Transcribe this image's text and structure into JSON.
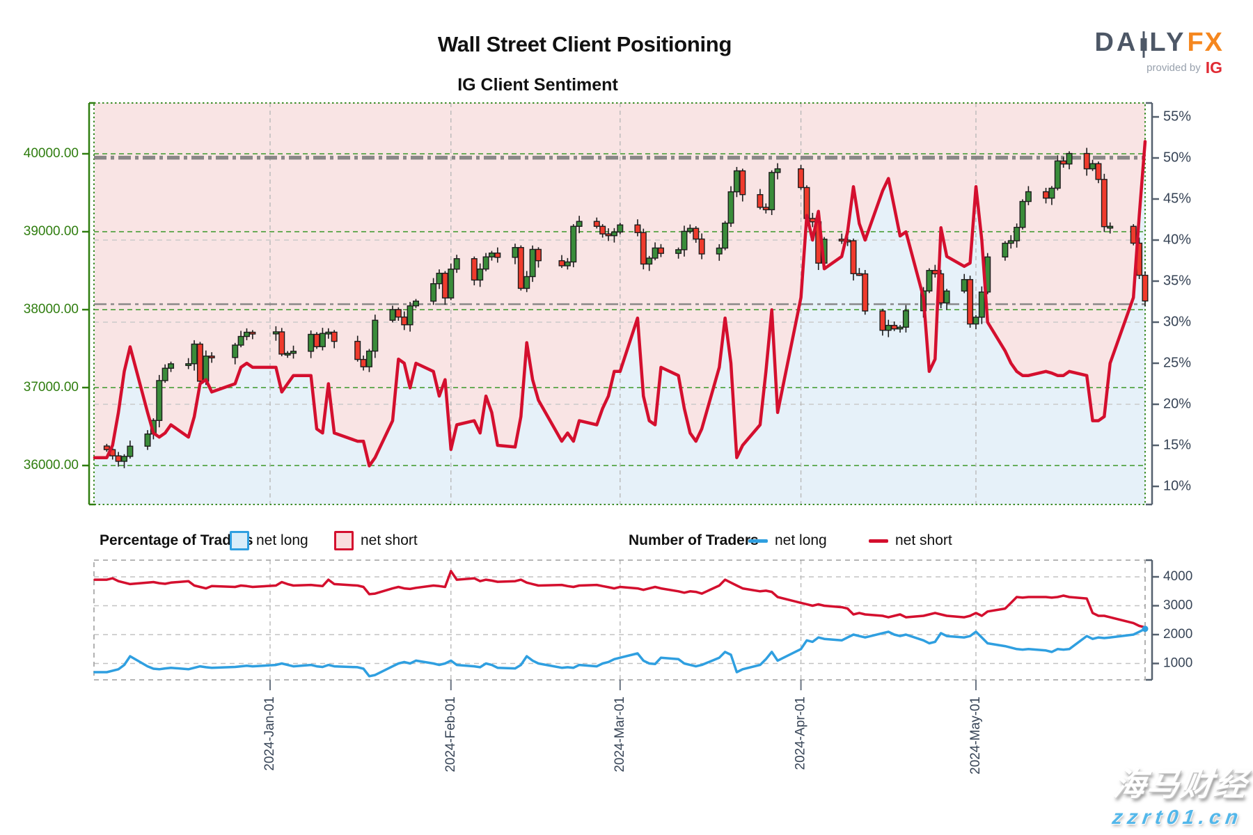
{
  "header": {
    "title": "Wall Street Client Positioning",
    "subtitle": "IG Client Sentiment",
    "logo": {
      "part1": "DA",
      "part2": "LY",
      "part3": "FX",
      "provided_by": "provided by",
      "ig": "IG"
    }
  },
  "legend": {
    "percentage_title": "Percentage of Traders",
    "pct_net_long": "net long",
    "pct_net_short": "net short",
    "number_title": "Number of Traders",
    "num_net_long": "net long",
    "num_net_short": "net short"
  },
  "watermark": {
    "text_cn": "海马财经",
    "text_url": "zzrt01.cn"
  },
  "colors": {
    "sentiment_red": "#d40f2e",
    "traders_blue": "#2f9fe0",
    "pink_fill": "#f9e4e4",
    "blue_fill": "#e6f1f9",
    "candle_green": "#3a8c3a",
    "candle_red": "#ef3b2d",
    "green_axis": "#2f7d0f",
    "green_grid": "#4da03c",
    "green_border": "#3c8c28",
    "slate": "#374456",
    "ref_gray": "#7d7d7d",
    "minor_gray": "#cacaca",
    "month_gray": "#b9b9b9",
    "lower_grid": "#c2c2c2",
    "lower_border": "#9e9e9e"
  },
  "chart_data": {
    "type": "candlestick+line",
    "title": "Wall Street Client Positioning",
    "subtitle": "IG Client Sentiment",
    "price_axis": {
      "side": "left",
      "ticks": [
        40000,
        39000,
        38000,
        37000,
        36000
      ],
      "labels": [
        "40000.00",
        "39000.00",
        "38000.00",
        "37000.00",
        "36000.00"
      ],
      "range": [
        35480,
        40650
      ]
    },
    "pct_axis": {
      "side": "right",
      "ticks": [
        55,
        50,
        45,
        40,
        35,
        30,
        25,
        20,
        15,
        10
      ],
      "labels": [
        "55%",
        "50%",
        "45%",
        "40%",
        "35%",
        "30%",
        "25%",
        "20%",
        "15%",
        "10%"
      ],
      "minor_gridlines": [
        40,
        30,
        20
      ],
      "range": [
        7.5,
        56.7
      ]
    },
    "count_axis": {
      "side": "right",
      "ticks": [
        4000,
        3000,
        2000,
        1000
      ],
      "labels": [
        "4000",
        "3000",
        "2000",
        "1000"
      ],
      "range": [
        430,
        4580
      ]
    },
    "reference_price_lines": [
      {
        "price": 39950,
        "weight": "thick"
      },
      {
        "price": 38070,
        "weight": "thin"
      }
    ],
    "months": [
      {
        "date": "2024-01-01",
        "label": "2024-Jan-01"
      },
      {
        "date": "2024-02-01",
        "label": "2024-Feb-01"
      },
      {
        "date": "2024-03-01",
        "label": "2024-Mar-01"
      },
      {
        "date": "2024-04-01",
        "label": "2024-Apr-01"
      },
      {
        "date": "2024-05-01",
        "label": "2024-May-01"
      }
    ],
    "series": {
      "dates": [
        "2023-12-04",
        "2023-12-05",
        "2023-12-06",
        "2023-12-07",
        "2023-12-08",
        "2023-12-11",
        "2023-12-12",
        "2023-12-13",
        "2023-12-14",
        "2023-12-15",
        "2023-12-18",
        "2023-12-19",
        "2023-12-20",
        "2023-12-21",
        "2023-12-22",
        "2023-12-26",
        "2023-12-27",
        "2023-12-28",
        "2023-12-29",
        "2024-01-02",
        "2024-01-03",
        "2024-01-04",
        "2024-01-05",
        "2024-01-08",
        "2024-01-09",
        "2024-01-10",
        "2024-01-11",
        "2024-01-12",
        "2024-01-16",
        "2024-01-17",
        "2024-01-18",
        "2024-01-19",
        "2024-01-22",
        "2024-01-23",
        "2024-01-24",
        "2024-01-25",
        "2024-01-26",
        "2024-01-29",
        "2024-01-30",
        "2024-01-31",
        "2024-02-01",
        "2024-02-02",
        "2024-02-05",
        "2024-02-06",
        "2024-02-07",
        "2024-02-08",
        "2024-02-09",
        "2024-02-12",
        "2024-02-13",
        "2024-02-14",
        "2024-02-15",
        "2024-02-16",
        "2024-02-20",
        "2024-02-21",
        "2024-02-22",
        "2024-02-23",
        "2024-02-26",
        "2024-02-27",
        "2024-02-28",
        "2024-02-29",
        "2024-03-01",
        "2024-03-04",
        "2024-03-05",
        "2024-03-06",
        "2024-03-07",
        "2024-03-08",
        "2024-03-11",
        "2024-03-12",
        "2024-03-13",
        "2024-03-14",
        "2024-03-15",
        "2024-03-18",
        "2024-03-19",
        "2024-03-20",
        "2024-03-21",
        "2024-03-22",
        "2024-03-25",
        "2024-03-26",
        "2024-03-27",
        "2024-03-28",
        "2024-04-01",
        "2024-04-02",
        "2024-04-03",
        "2024-04-04",
        "2024-04-05",
        "2024-04-08",
        "2024-04-09",
        "2024-04-10",
        "2024-04-11",
        "2024-04-12",
        "2024-04-15",
        "2024-04-16",
        "2024-04-17",
        "2024-04-18",
        "2024-04-19",
        "2024-04-22",
        "2024-04-23",
        "2024-04-24",
        "2024-04-25",
        "2024-04-26",
        "2024-04-29",
        "2024-04-30",
        "2024-05-01",
        "2024-05-02",
        "2024-05-03",
        "2024-05-06",
        "2024-05-07",
        "2024-05-08",
        "2024-05-09",
        "2024-05-10",
        "2024-05-13",
        "2024-05-14",
        "2024-05-15",
        "2024-05-16",
        "2024-05-17",
        "2024-05-20",
        "2024-05-21",
        "2024-05-22",
        "2024-05-23",
        "2024-05-24",
        "2024-05-28",
        "2024-05-29",
        "2024-05-30"
      ],
      "close": [
        36204,
        36124,
        36054,
        36117,
        36248,
        36404,
        36578,
        37090,
        37248,
        37305,
        37306,
        37558,
        37082,
        37404,
        37386,
        37545,
        37656,
        37710,
        37689,
        37715,
        37430,
        37440,
        37466,
        37683,
        37525,
        37695,
        37711,
        37593,
        37361,
        37267,
        37468,
        37864,
        38001,
        37905,
        37806,
        38049,
        38109,
        38333,
        38467,
        38150,
        38520,
        38654,
        38380,
        38521,
        38677,
        38726,
        38671,
        38797,
        38273,
        38424,
        38773,
        38628,
        38563,
        38612,
        39069,
        39132,
        39069,
        38972,
        38949,
        38996,
        39087,
        38989,
        38585,
        38661,
        38791,
        38722,
        38769,
        39005,
        39043,
        38906,
        38715,
        38790,
        39110,
        39512,
        39781,
        39476,
        39313,
        39282,
        39760,
        39807,
        39567,
        39170,
        39127,
        38597,
        38904,
        38892,
        38884,
        38462,
        38459,
        37983,
        37735,
        37798,
        37753,
        37775,
        37986,
        38240,
        38503,
        38460,
        38086,
        38239,
        38386,
        37816,
        37903,
        38226,
        38676,
        38852,
        38884,
        39056,
        39388,
        39513,
        39431,
        39558,
        39908,
        39869,
        40004,
        39807,
        39873,
        39671,
        39065,
        39069,
        38853,
        38441,
        38111
      ],
      "net_short_pct": [
        13.5,
        15,
        19,
        24,
        27,
        19,
        16.5,
        16,
        16.5,
        17.5,
        16,
        18.5,
        22.5,
        23,
        21.5,
        22.5,
        24.5,
        25,
        24.5,
        24.5,
        21.5,
        22.5,
        23.5,
        23.5,
        17,
        16.5,
        22.5,
        16.5,
        15.5,
        15.5,
        12.5,
        13.5,
        18,
        25.5,
        25,
        22,
        25,
        24,
        21,
        23,
        14.5,
        17.5,
        18,
        16.5,
        21,
        19,
        15,
        14.8,
        18.5,
        27.5,
        23,
        20.5,
        15.5,
        16.5,
        15.5,
        18,
        17.5,
        19.5,
        21,
        24,
        24,
        30.5,
        21,
        18,
        17.5,
        24.5,
        23.5,
        19.5,
        16.5,
        15.5,
        17,
        24.5,
        30.5,
        25,
        13.5,
        15,
        17.5,
        24,
        31.5,
        19,
        33,
        43,
        40,
        43.5,
        36.5,
        38,
        41,
        46.5,
        42,
        40,
        46,
        47.5,
        44,
        40.5,
        41,
        33,
        24,
        25.5,
        41.5,
        38,
        36.8,
        37.2,
        46.5,
        40,
        30,
        26.5,
        25,
        24,
        23.5,
        23.5,
        24,
        23.8,
        23.5,
        23.5,
        24,
        23.5,
        18,
        18,
        18.5,
        25,
        33,
        43,
        52
      ],
      "net_short_count": [
        3900,
        3950,
        3850,
        3800,
        3750,
        3800,
        3820,
        3780,
        3760,
        3800,
        3850,
        3700,
        3650,
        3600,
        3680,
        3650,
        3700,
        3680,
        3650,
        3700,
        3820,
        3750,
        3700,
        3720,
        3700,
        3680,
        3900,
        3750,
        3700,
        3650,
        3400,
        3420,
        3600,
        3650,
        3600,
        3580,
        3620,
        3700,
        3680,
        3650,
        4200,
        3900,
        3950,
        3850,
        3900,
        3870,
        3830,
        3850,
        3900,
        3800,
        3750,
        3700,
        3720,
        3680,
        3650,
        3700,
        3720,
        3680,
        3640,
        3600,
        3650,
        3600,
        3550,
        3600,
        3650,
        3600,
        3500,
        3450,
        3500,
        3480,
        3420,
        3700,
        3900,
        3800,
        3700,
        3600,
        3500,
        3520,
        3480,
        3300,
        3100,
        3050,
        3000,
        3050,
        3000,
        2950,
        2900,
        2700,
        2750,
        2700,
        2650,
        2600,
        2650,
        2700,
        2600,
        2650,
        2700,
        2750,
        2700,
        2650,
        2600,
        2650,
        2750,
        2650,
        2800,
        2900,
        3100,
        3300,
        3280,
        3300,
        3300,
        3280,
        3300,
        3350,
        3300,
        3250,
        2750,
        2650,
        2650,
        2600,
        2400,
        2300,
        2250
      ],
      "net_long_count": [
        700,
        750,
        800,
        950,
        1250,
        900,
        820,
        800,
        830,
        850,
        800,
        850,
        900,
        870,
        850,
        880,
        900,
        920,
        900,
        950,
        1000,
        950,
        900,
        950,
        900,
        880,
        950,
        900,
        870,
        820,
        560,
        600,
        900,
        1000,
        1050,
        1000,
        1100,
        1000,
        950,
        1000,
        1100,
        950,
        900,
        870,
        1000,
        950,
        850,
        830,
        950,
        1250,
        1100,
        1000,
        850,
        870,
        850,
        950,
        900,
        1000,
        1050,
        1150,
        1200,
        1350,
        1100,
        1000,
        980,
        1200,
        1150,
        1000,
        950,
        900,
        950,
        1200,
        1400,
        1300,
        700,
        800,
        950,
        1150,
        1400,
        1100,
        1500,
        1800,
        1750,
        1900,
        1850,
        1800,
        1900,
        2000,
        1950,
        1900,
        2050,
        2100,
        2000,
        1950,
        2000,
        1800,
        1700,
        1750,
        2050,
        1950,
        1900,
        1950,
        2100,
        1900,
        1700,
        1600,
        1550,
        1500,
        1480,
        1500,
        1450,
        1400,
        1500,
        1480,
        1500,
        1950,
        1850,
        1900,
        1880,
        1900,
        2000,
        2100,
        2200
      ]
    }
  }
}
